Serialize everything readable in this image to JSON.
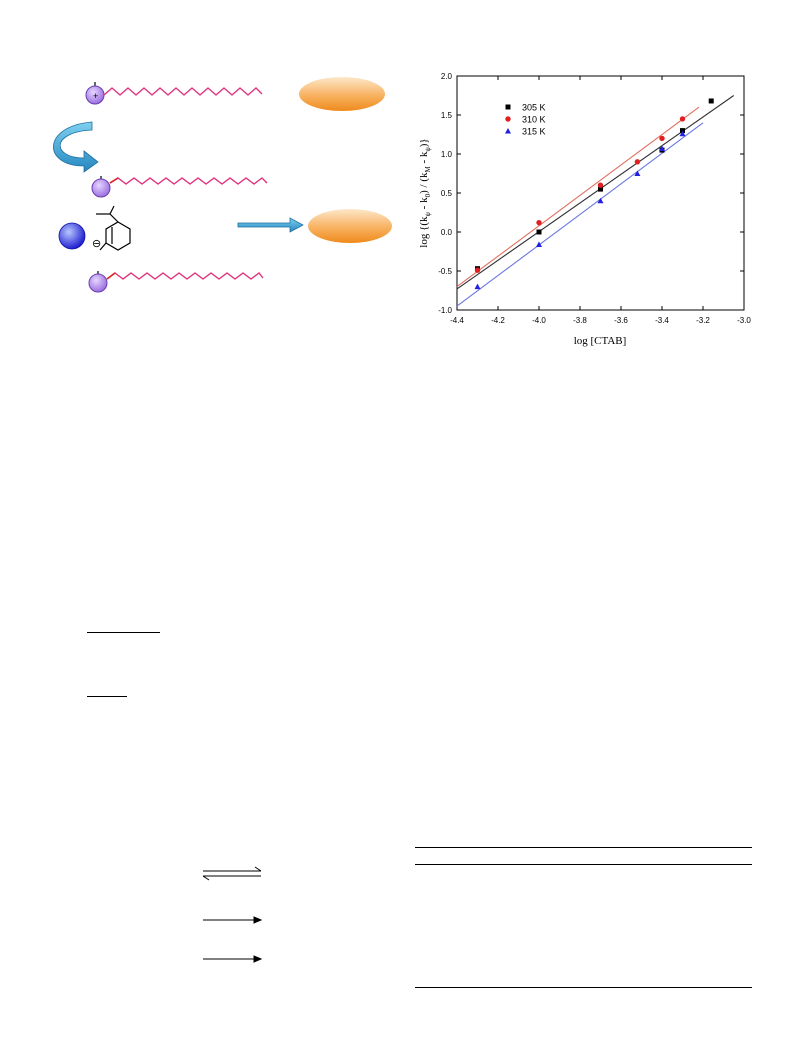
{
  "scheme": {
    "charge_symbol": "+",
    "anion_charge_symbol": "⊖",
    "colors": {
      "chain": "#e0337a",
      "head": "#9c6fe0",
      "micelle_top": "#fde0b8",
      "micelle_bottom": "#f08a1e",
      "arrow": "#3a9fd2",
      "anion": "#4040e0"
    }
  },
  "chart_data": {
    "type": "scatter",
    "xlabel": "log [CTAB]",
    "ylabel": "log {(kψ - k0) / (kM - kψ)}",
    "ylabel_parts": {
      "prefix": "log {(k",
      "sub1": "ψ",
      "mid1": " - k",
      "sub2": "0",
      "mid2": ") / (k",
      "sub3": "M",
      "mid3": " - k",
      "sub4": "ψ",
      "suffix": ")}"
    },
    "xlim": [
      -4.4,
      -3.0
    ],
    "ylim": [
      -1.0,
      2.0
    ],
    "xticks": [
      -4.4,
      -4.2,
      -4.0,
      -3.8,
      -3.6,
      -3.4,
      -3.2,
      -3.0
    ],
    "yticks": [
      -1.0,
      -0.5,
      0.0,
      0.5,
      1.0,
      1.5,
      2.0
    ],
    "xtick_labels": [
      "-4.4",
      "-4.2",
      "-4.0",
      "-3.8",
      "-3.6",
      "-3.4",
      "-3.2",
      "-3.0"
    ],
    "ytick_labels": [
      "-1.0",
      "-0.5",
      "0.0",
      "0.5",
      "1.0",
      "1.5",
      "2.0"
    ],
    "legend_position": "top-left",
    "series": [
      {
        "name": "305 K",
        "color": "#000000",
        "marker": "square",
        "x": [
          -4.3,
          -4.0,
          -3.7,
          -3.4,
          -3.3,
          -3.16
        ],
        "y": [
          -0.47,
          0.0,
          0.55,
          1.05,
          1.3,
          1.68
        ],
        "fit": [
          [
            -4.4,
            -0.73
          ],
          [
            -3.05,
            1.75
          ]
        ]
      },
      {
        "name": "310 K",
        "color": "#e02020",
        "marker": "circle",
        "x": [
          -4.3,
          -4.0,
          -3.7,
          -3.52,
          -3.4,
          -3.3
        ],
        "y": [
          -0.49,
          0.12,
          0.6,
          0.9,
          1.2,
          1.45
        ],
        "fit": [
          [
            -4.4,
            -0.7
          ],
          [
            -3.22,
            1.6
          ]
        ]
      },
      {
        "name": "315 K",
        "color": "#2020e0",
        "marker": "triangle",
        "x": [
          -4.3,
          -4.0,
          -3.7,
          -3.52,
          -3.4,
          -3.3
        ],
        "y": [
          -0.7,
          -0.16,
          0.4,
          0.75,
          1.07,
          1.26
        ],
        "fit": [
          [
            -4.4,
            -0.95
          ],
          [
            -3.2,
            1.4
          ]
        ]
      }
    ]
  }
}
